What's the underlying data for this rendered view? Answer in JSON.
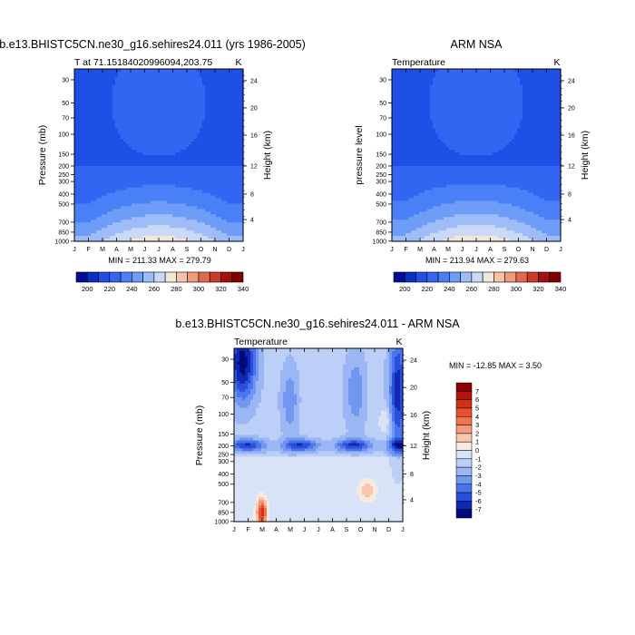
{
  "months": [
    "J",
    "F",
    "M",
    "A",
    "M",
    "J",
    "J",
    "A",
    "S",
    "O",
    "N",
    "D",
    "J"
  ],
  "pressure_ticks": [
    "30",
    "50",
    "70",
    "100",
    "150",
    "200",
    "250",
    "300",
    "400",
    "500",
    "700",
    "850",
    "1000"
  ],
  "height_ticks": [
    "24",
    "20",
    "16",
    "12",
    "8",
    "4"
  ],
  "chart_data": [
    {
      "type": "heatmap",
      "title": "b.e13.BHISTC5CN.ne30_g16.sehires24.011 (yrs 1986-2005)",
      "left_label": "T at 71.15184020996094,203.75",
      "units": "K",
      "ylabel": "Pressure (mb)",
      "ylabel_right": "Height (km)",
      "stats": "MIN = 211.33 MAX = 279.79",
      "min": 211.33,
      "max": 279.79,
      "colorbar": {
        "labels": [
          "200",
          "220",
          "240",
          "260",
          "280",
          "300",
          "320",
          "340"
        ],
        "colors": [
          "#000d94",
          "#0a2fc4",
          "#1e4fe6",
          "#3266f2",
          "#4a80f7",
          "#6e9df8",
          "#9ebcf7",
          "#c9d9f6",
          "#f3e6db",
          "#f7c2a5",
          "#ef9a78",
          "#e06a4d",
          "#cc3a27",
          "#a3120a",
          "#7e0000"
        ]
      }
    },
    {
      "type": "heatmap",
      "title": "ARM NSA",
      "left_label": "Temperature",
      "units": "K",
      "ylabel": "pressure level",
      "ylabel_right": "Height (km)",
      "stats": "MIN = 213.94 MAX = 279.63",
      "min": 213.94,
      "max": 279.63,
      "colorbar": {
        "labels": [
          "200",
          "220",
          "240",
          "260",
          "280",
          "300",
          "320",
          "340"
        ],
        "colors": [
          "#000d94",
          "#0a2fc4",
          "#1e4fe6",
          "#3266f2",
          "#4a80f7",
          "#6e9df8",
          "#9ebcf7",
          "#c9d9f6",
          "#f3e6db",
          "#f7c2a5",
          "#ef9a78",
          "#e06a4d",
          "#cc3a27",
          "#a3120a",
          "#7e0000"
        ]
      }
    },
    {
      "type": "heatmap",
      "title": "b.e13.BHISTC5CN.ne30_g16.sehires24.011 - ARM NSA",
      "left_label": "Temperature",
      "units": "K",
      "ylabel": "Pressure (mb)",
      "ylabel_right": "Height (km)",
      "stats": "MIN = -12.85 MAX =   3.50",
      "min": -12.85,
      "max": 3.5,
      "colorbar": {
        "labels": [
          "7",
          "6",
          "5",
          "4",
          "3",
          "2",
          "1",
          "0",
          "-1",
          "-2",
          "-3",
          "-4",
          "-5",
          "-6",
          "-7"
        ],
        "colors": [
          "#8b0000",
          "#b3150a",
          "#d43016",
          "#ea5030",
          "#f2734f",
          "#f59a7a",
          "#f8c6ab",
          "#f6eae2",
          "#d9e3f7",
          "#bccff6",
          "#9bb6f4",
          "#7197f1",
          "#4a74ec",
          "#2a4fdc",
          "#1029b3",
          "#000a7d"
        ]
      }
    }
  ]
}
